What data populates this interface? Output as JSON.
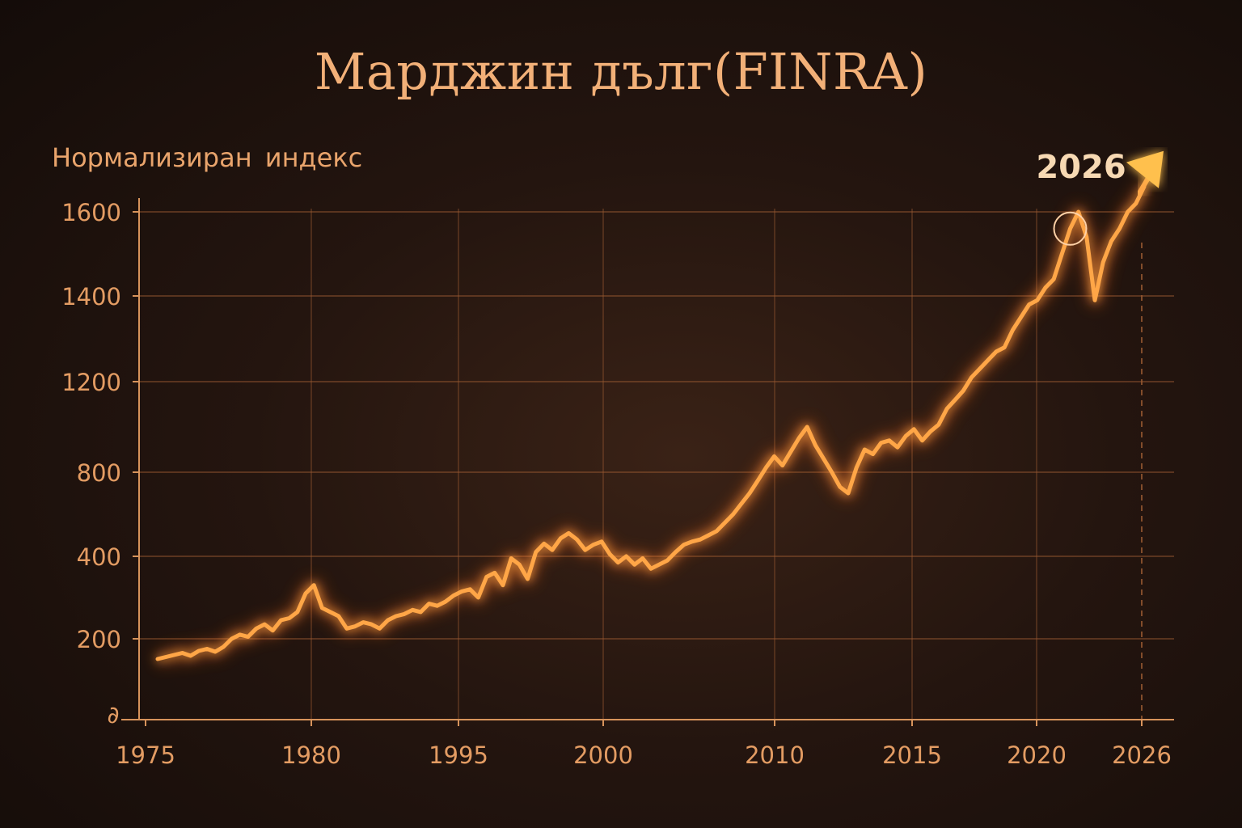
{
  "colors": {
    "line": "#ffa646",
    "line_glow": "#ff6a1a",
    "grid": "#9a5a32",
    "axis_text": "#e39c63",
    "background": "#24150f"
  },
  "chart_data": {
    "type": "line",
    "title": "Марджин дълг(FINRA)",
    "ylabel": "Нормализиран индекс",
    "xlabel": "",
    "x_tick_labels": [
      "1975",
      "1980",
      "1995",
      "2000",
      "2010",
      "2015",
      "2020",
      "2026"
    ],
    "y_tick_labels": [
      "200",
      "400",
      "800",
      "1200",
      "1400",
      "1600"
    ],
    "origin_label": "∂",
    "highlight_label": "2026",
    "grid": true,
    "trend_arrow": true,
    "series": [
      {
        "x": [
          0.0,
          0.3,
          0.6,
          0.9,
          1.2,
          1.5,
          1.8,
          2.1,
          2.4,
          2.7,
          3.0,
          3.3,
          3.6,
          3.9,
          4.2,
          4.5,
          4.8,
          5.1,
          5.4,
          5.7,
          6.0,
          6.3,
          6.6,
          6.9,
          7.2,
          7.5,
          7.8,
          8.1,
          8.4,
          8.7,
          9.0,
          9.3,
          9.6,
          9.9,
          10.2,
          10.5,
          10.8,
          11.1,
          11.4,
          11.7,
          12.0,
          12.3,
          12.6,
          12.9,
          13.2,
          13.5,
          13.8,
          14.1,
          14.4,
          14.7,
          15.0,
          15.3,
          15.6,
          15.9,
          16.2,
          16.5,
          16.8,
          17.1,
          17.4,
          17.7,
          18.0,
          18.3,
          18.6,
          18.9,
          19.2,
          19.5,
          19.8,
          20.1,
          20.4,
          20.7,
          21.0,
          21.3,
          21.6,
          21.9,
          22.2,
          22.5,
          22.8,
          23.1,
          23.4,
          23.7,
          24.0,
          24.3,
          24.6,
          24.9,
          25.2,
          25.5,
          25.8,
          26.1,
          26.4,
          26.7,
          27.0,
          27.3,
          27.6,
          27.9,
          28.2,
          28.5,
          28.8,
          29.1,
          29.4,
          29.7,
          30.0,
          30.3,
          30.6,
          30.9,
          31.2,
          31.5,
          31.8,
          32.1,
          32.4,
          32.7,
          33.0,
          33.3,
          33.6,
          33.9,
          34.2,
          34.5,
          34.8,
          35.1,
          35.4,
          35.7,
          36.0
        ],
        "values": [
          150,
          155,
          160,
          165,
          158,
          170,
          175,
          168,
          180,
          200,
          210,
          205,
          225,
          235,
          220,
          245,
          250,
          265,
          310,
          330,
          275,
          265,
          255,
          225,
          230,
          240,
          235,
          225,
          245,
          255,
          260,
          270,
          265,
          285,
          280,
          290,
          305,
          315,
          320,
          300,
          350,
          360,
          330,
          395,
          380,
          345,
          420,
          460,
          430,
          485,
          510,
          480,
          430,
          455,
          470,
          410,
          385,
          400,
          380,
          395,
          370,
          380,
          390,
          420,
          455,
          470,
          480,
          500,
          520,
          560,
          600,
          650,
          700,
          760,
          820,
          870,
          830,
          890,
          950,
          1000,
          920,
          860,
          800,
          730,
          700,
          820,
          900,
          880,
          930,
          940,
          910,
          960,
          990,
          940,
          980,
          1010,
          1080,
          1120,
          1160,
          1210,
          1230,
          1250,
          1270,
          1280,
          1320,
          1350,
          1380,
          1390,
          1420,
          1440,
          1500,
          1560,
          1600,
          1540,
          1390,
          1480,
          1530,
          1560,
          1600,
          1620,
          1660
        ]
      }
    ]
  }
}
